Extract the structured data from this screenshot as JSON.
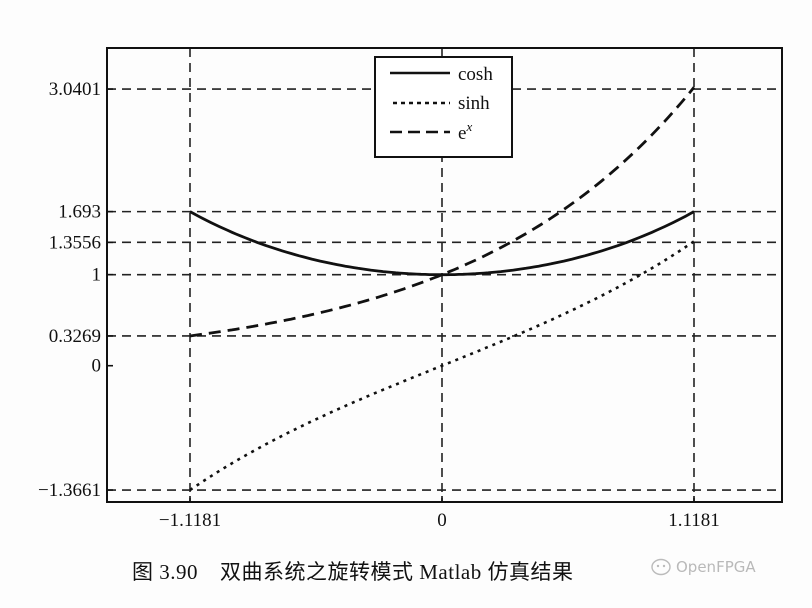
{
  "chart_data": {
    "type": "line",
    "title": "",
    "xlabel": "",
    "ylabel": "",
    "xlim": [
      -1.5,
      1.5
    ],
    "ylim": [
      -1.45,
      3.45
    ],
    "grid": "dashed reference lines at tick values",
    "legend_position": "upper-center",
    "xticks": [
      "-1.1181",
      "0",
      "1.1181"
    ],
    "xtick_values": [
      -1.1181,
      0,
      1.1181
    ],
    "yticks": [
      "3.0401",
      "1.693",
      "1.3556",
      "1",
      "0.3269",
      "0",
      "-1.3661"
    ],
    "ytick_values": [
      3.0401,
      1.693,
      1.3556,
      1,
      0.3269,
      0,
      -1.3661
    ],
    "series": [
      {
        "name": "cosh",
        "style": "solid",
        "x": [
          -1.1181,
          -0.75,
          -0.5,
          -0.25,
          0,
          0.25,
          0.5,
          0.75,
          1.1181
        ],
        "values": [
          1.693,
          1.2947,
          1.1276,
          1.0314,
          1.0,
          1.0314,
          1.1276,
          1.2947,
          1.693
        ]
      },
      {
        "name": "sinh",
        "style": "dotted",
        "x": [
          -1.1181,
          -0.75,
          -0.5,
          -0.25,
          0,
          0.25,
          0.5,
          0.75,
          1.1181
        ],
        "values": [
          -1.3661,
          -0.8223,
          -0.5211,
          -0.2526,
          0.0,
          0.2526,
          0.5211,
          0.8223,
          1.3556
        ]
      },
      {
        "name": "e^x",
        "style": "dashed",
        "x": [
          -1.1181,
          -0.75,
          -0.5,
          -0.25,
          0,
          0.25,
          0.5,
          0.75,
          1.1181
        ],
        "values": [
          0.3269,
          0.4724,
          0.6065,
          0.7788,
          1.0,
          1.284,
          1.6487,
          2.117,
          3.0401
        ]
      }
    ]
  },
  "legend": {
    "items": [
      {
        "label": "cosh",
        "sup": ""
      },
      {
        "label": "sinh",
        "sup": ""
      },
      {
        "label": "e",
        "sup": "x"
      }
    ]
  },
  "caption": {
    "figure_number": "图 3.90",
    "text": "双曲系统之旋转模式 Matlab 仿真结果"
  },
  "watermark": {
    "text": "OpenFPGA"
  }
}
